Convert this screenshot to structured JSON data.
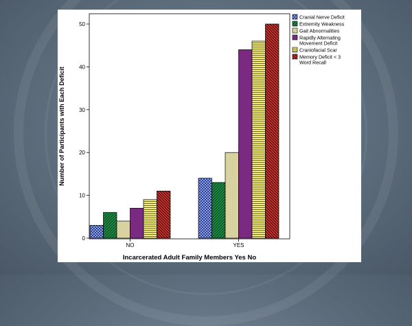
{
  "chart_data": {
    "type": "bar",
    "title": "",
    "xlabel": "Incarcerated Adult Family Members Yes No",
    "ylabel": "Number of Participants with Each Deficit",
    "categories": [
      "NO",
      "YES"
    ],
    "ylim": [
      0,
      52
    ],
    "yticks": [
      0,
      10,
      20,
      30,
      40,
      50
    ],
    "grid": false,
    "legend_position": "right",
    "series": [
      {
        "name": "Cranial Nerve Deficit",
        "values": [
          3,
          14
        ],
        "color": "#2b3a8c",
        "pattern": "checker"
      },
      {
        "name": "Extremity Weakness",
        "values": [
          6,
          13
        ],
        "color": "#1f8f4a",
        "pattern": "diagonal-down"
      },
      {
        "name": "Gait Abnormalities",
        "values": [
          4,
          20
        ],
        "color": "#d8d2a0",
        "pattern": "solid"
      },
      {
        "name": "Rapidly Alternating Movement Deficit",
        "values": [
          7,
          44
        ],
        "color": "#7a2a80",
        "pattern": "solid"
      },
      {
        "name": "Craniofacial Scar",
        "values": [
          9,
          46
        ],
        "color": "#f2ec7a",
        "pattern": "horizontal"
      },
      {
        "name": "Memory Deficit < 3 Word Recall",
        "values": [
          11,
          50
        ],
        "color": "#e0302a",
        "pattern": "diagonal-up"
      }
    ]
  }
}
